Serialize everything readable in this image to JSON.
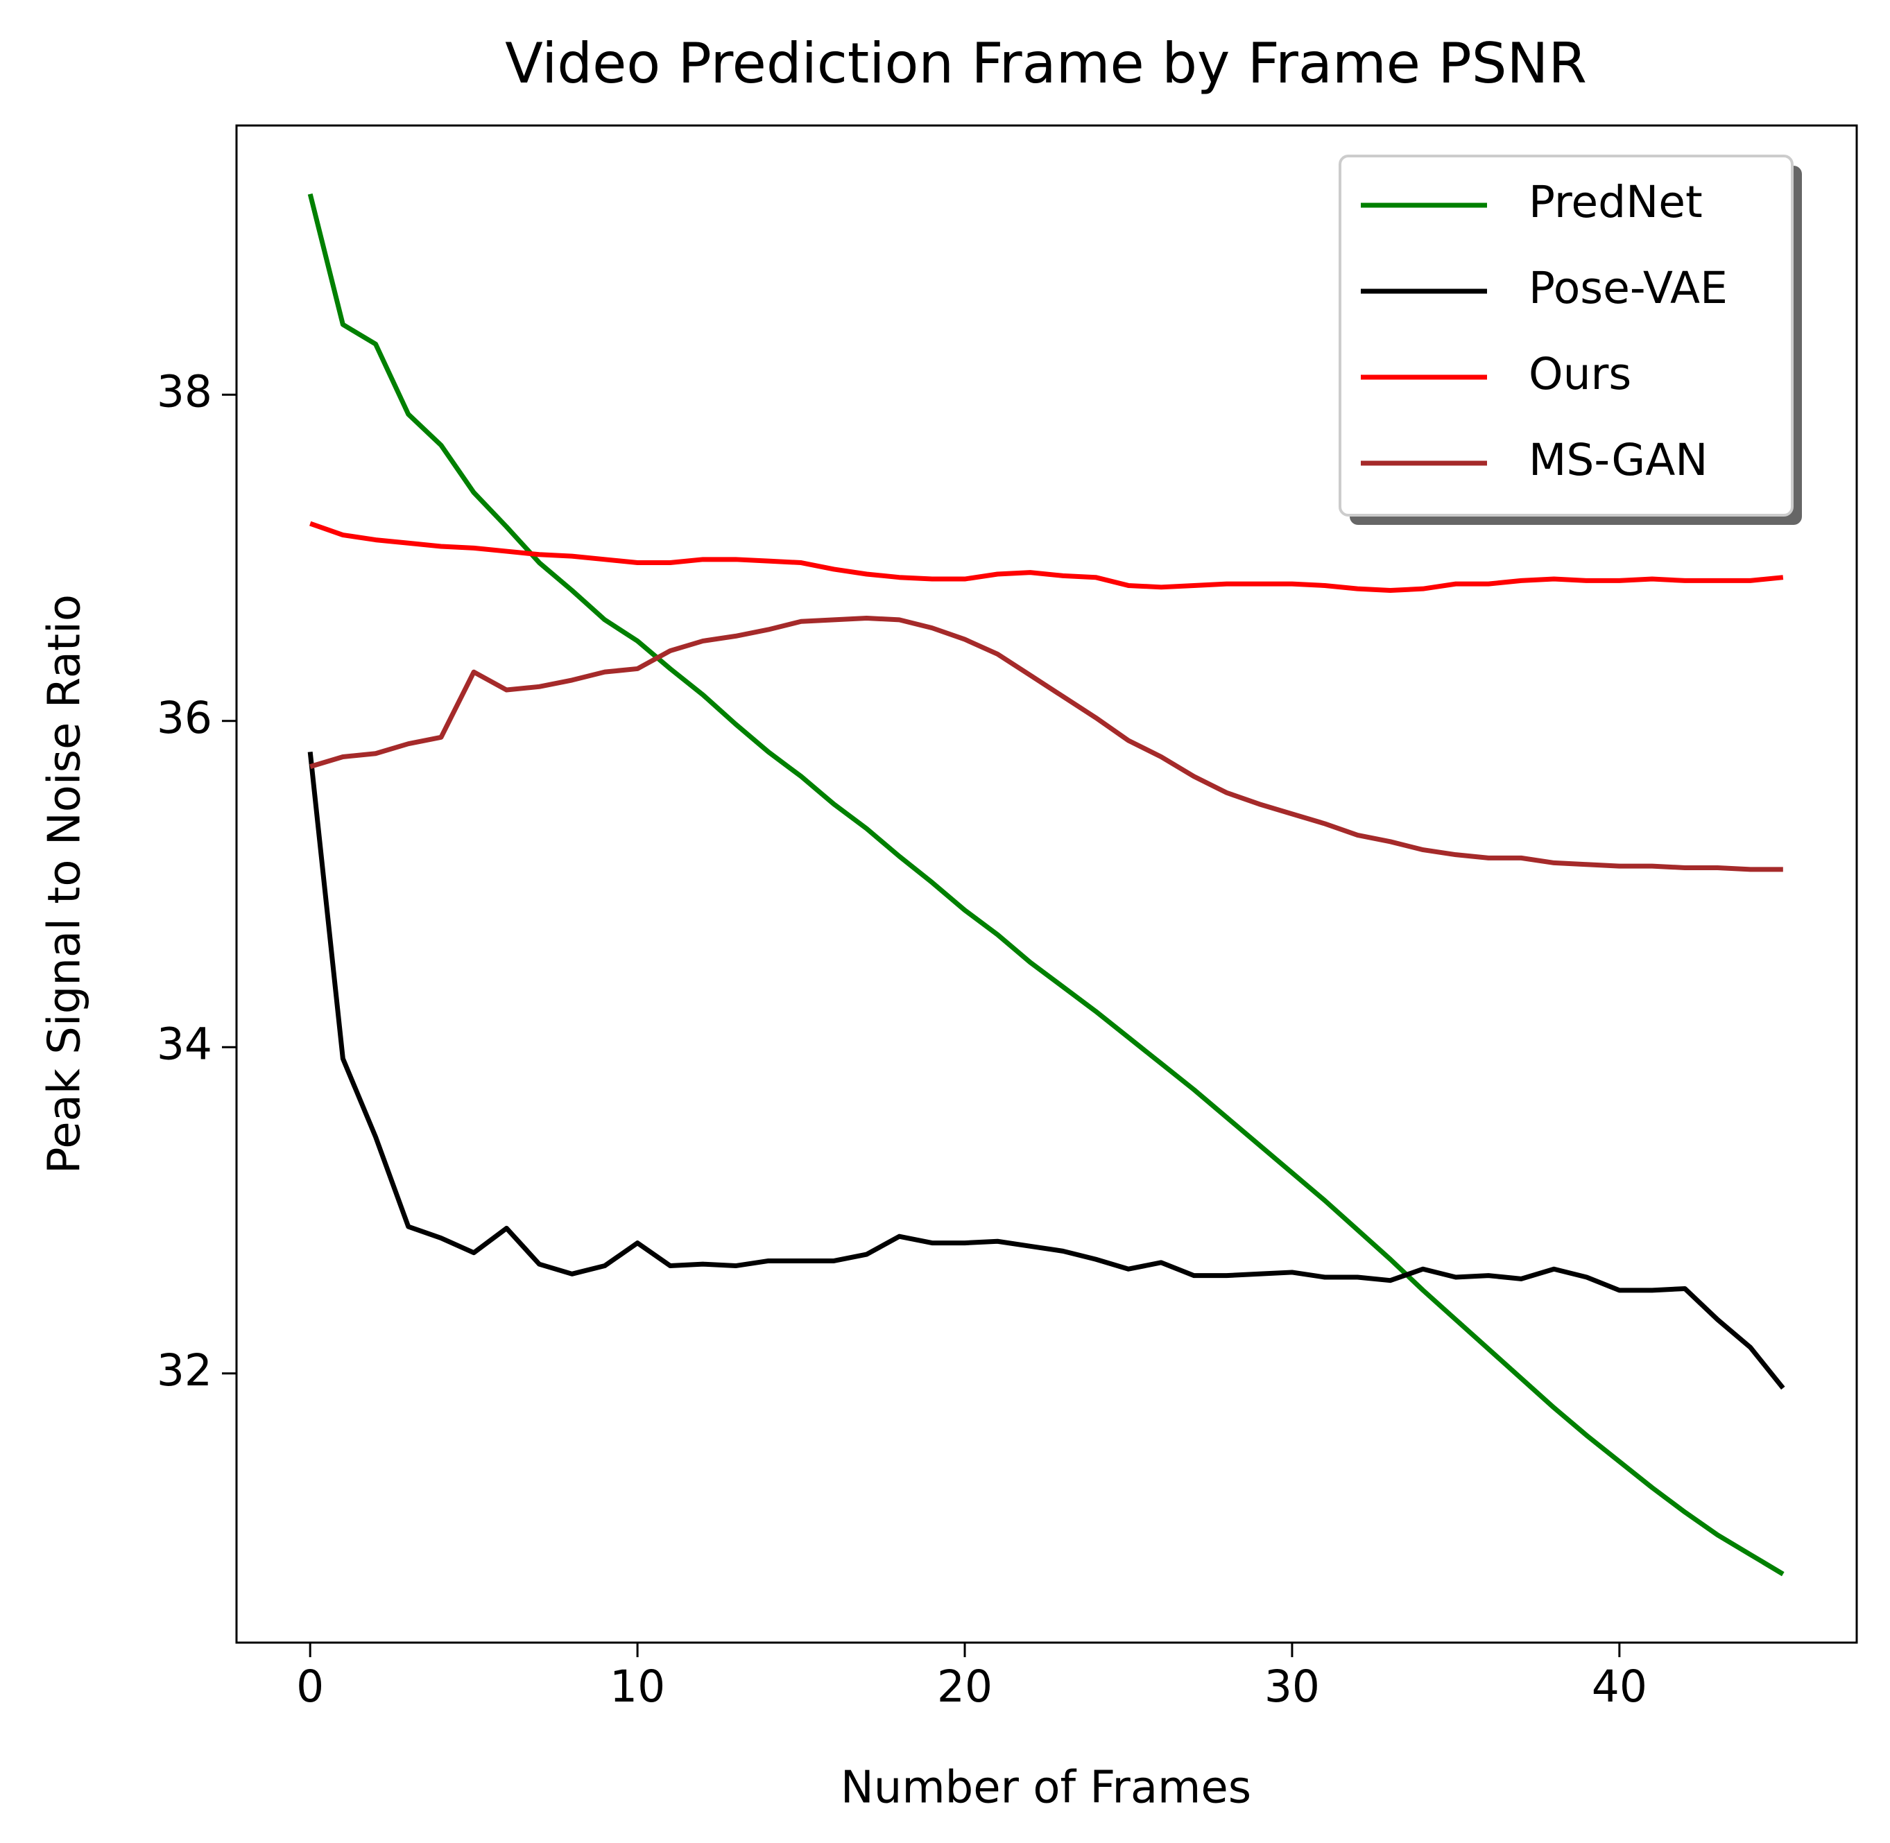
{
  "chart_data": {
    "type": "line",
    "title": "Video Prediction Frame by Frame PSNR",
    "x_label": "Number of Frames",
    "y_label": "Peak Signal to Noise Ratio",
    "x": [
      0,
      1,
      2,
      3,
      4,
      5,
      6,
      7,
      8,
      9,
      10,
      11,
      12,
      13,
      14,
      15,
      16,
      17,
      18,
      19,
      20,
      21,
      22,
      23,
      24,
      25,
      26,
      27,
      28,
      29,
      30,
      31,
      32,
      33,
      34,
      35,
      36,
      37,
      38,
      39,
      40,
      41,
      42,
      43,
      44,
      45
    ],
    "series": [
      {
        "name": "PredNet",
        "color": "#008000",
        "values": [
          39.23,
          38.43,
          38.31,
          37.88,
          37.69,
          37.4,
          37.19,
          36.97,
          36.8,
          36.62,
          36.49,
          36.32,
          36.16,
          35.98,
          35.81,
          35.66,
          35.49,
          35.34,
          35.17,
          35.01,
          34.84,
          34.69,
          34.52,
          34.37,
          34.22,
          34.06,
          33.9,
          33.74,
          33.57,
          33.4,
          33.23,
          33.06,
          32.88,
          32.7,
          32.51,
          32.33,
          32.15,
          31.97,
          31.79,
          31.62,
          31.46,
          31.3,
          31.15,
          31.01,
          30.89,
          30.77
        ]
      },
      {
        "name": "Pose-VAE",
        "color": "#000000",
        "values": [
          35.81,
          33.93,
          33.45,
          32.9,
          32.83,
          32.74,
          32.89,
          32.67,
          32.61,
          32.66,
          32.8,
          32.66,
          32.67,
          32.66,
          32.69,
          32.69,
          32.69,
          32.73,
          32.84,
          32.8,
          32.8,
          32.81,
          32.78,
          32.75,
          32.7,
          32.64,
          32.68,
          32.6,
          32.6,
          32.61,
          32.62,
          32.59,
          32.59,
          32.57,
          32.64,
          32.59,
          32.6,
          32.58,
          32.64,
          32.59,
          32.51,
          32.51,
          32.52,
          32.33,
          32.16,
          31.91
        ]
      },
      {
        "name": "Ours",
        "color": "#ff0000",
        "values": [
          37.21,
          37.14,
          37.11,
          37.09,
          37.07,
          37.06,
          37.04,
          37.02,
          37.01,
          36.99,
          36.97,
          36.97,
          36.99,
          36.99,
          36.98,
          36.97,
          36.93,
          36.9,
          36.88,
          36.87,
          36.87,
          36.9,
          36.91,
          36.89,
          36.88,
          36.83,
          36.82,
          36.83,
          36.84,
          36.84,
          36.84,
          36.83,
          36.81,
          36.8,
          36.81,
          36.84,
          36.84,
          36.86,
          36.87,
          36.86,
          36.86,
          36.87,
          36.86,
          36.86,
          36.86,
          36.88
        ]
      },
      {
        "name": "MS-GAN",
        "color": "#a52a2a",
        "values": [
          35.72,
          35.78,
          35.8,
          35.86,
          35.9,
          36.3,
          36.19,
          36.21,
          36.25,
          36.3,
          36.32,
          36.43,
          36.49,
          36.52,
          36.56,
          36.61,
          36.62,
          36.63,
          36.62,
          36.57,
          36.5,
          36.41,
          36.28,
          36.15,
          36.02,
          35.88,
          35.78,
          35.66,
          35.56,
          35.49,
          35.43,
          35.37,
          35.3,
          35.26,
          35.21,
          35.18,
          35.16,
          35.16,
          35.13,
          35.12,
          35.11,
          35.11,
          35.1,
          35.1,
          35.09,
          35.09
        ]
      }
    ],
    "xlim": [
      -2.25,
      47.25
    ],
    "ylim": [
      30.35,
      39.65
    ],
    "xticks": [
      0,
      10,
      20,
      30,
      40
    ],
    "yticks": [
      32,
      34,
      36,
      38
    ],
    "legend": "upper right"
  }
}
